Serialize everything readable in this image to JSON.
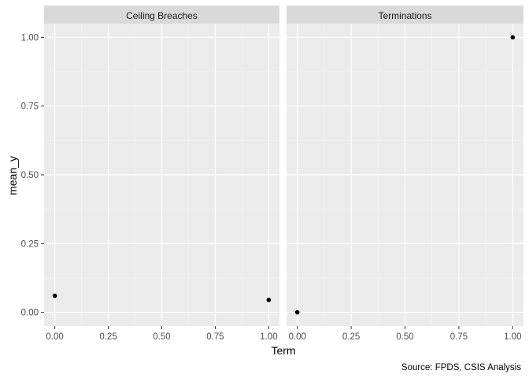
{
  "chart_data": {
    "type": "scatter",
    "xlabel": "Term",
    "ylabel": "mean_y",
    "caption": "Source: FPDS, CSIS Analysis",
    "xlim": [
      -0.05,
      1.05
    ],
    "ylim": [
      -0.05,
      1.05
    ],
    "x_ticks": [
      "0.00",
      "0.25",
      "0.50",
      "0.75",
      "1.00"
    ],
    "y_ticks": [
      "0.00",
      "0.25",
      "0.50",
      "0.75",
      "1.00"
    ],
    "grid": true,
    "point_color": "#000000",
    "panel_color": "#ebebeb",
    "strip_color": "#d9d9d9",
    "panels": [
      {
        "title": "Ceiling Breaches",
        "points": [
          {
            "x": 0.0,
            "y": 0.06
          },
          {
            "x": 1.0,
            "y": 0.045
          }
        ]
      },
      {
        "title": "Terminations",
        "points": [
          {
            "x": 0.0,
            "y": 0.0
          },
          {
            "x": 1.0,
            "y": 1.0
          }
        ]
      }
    ]
  }
}
